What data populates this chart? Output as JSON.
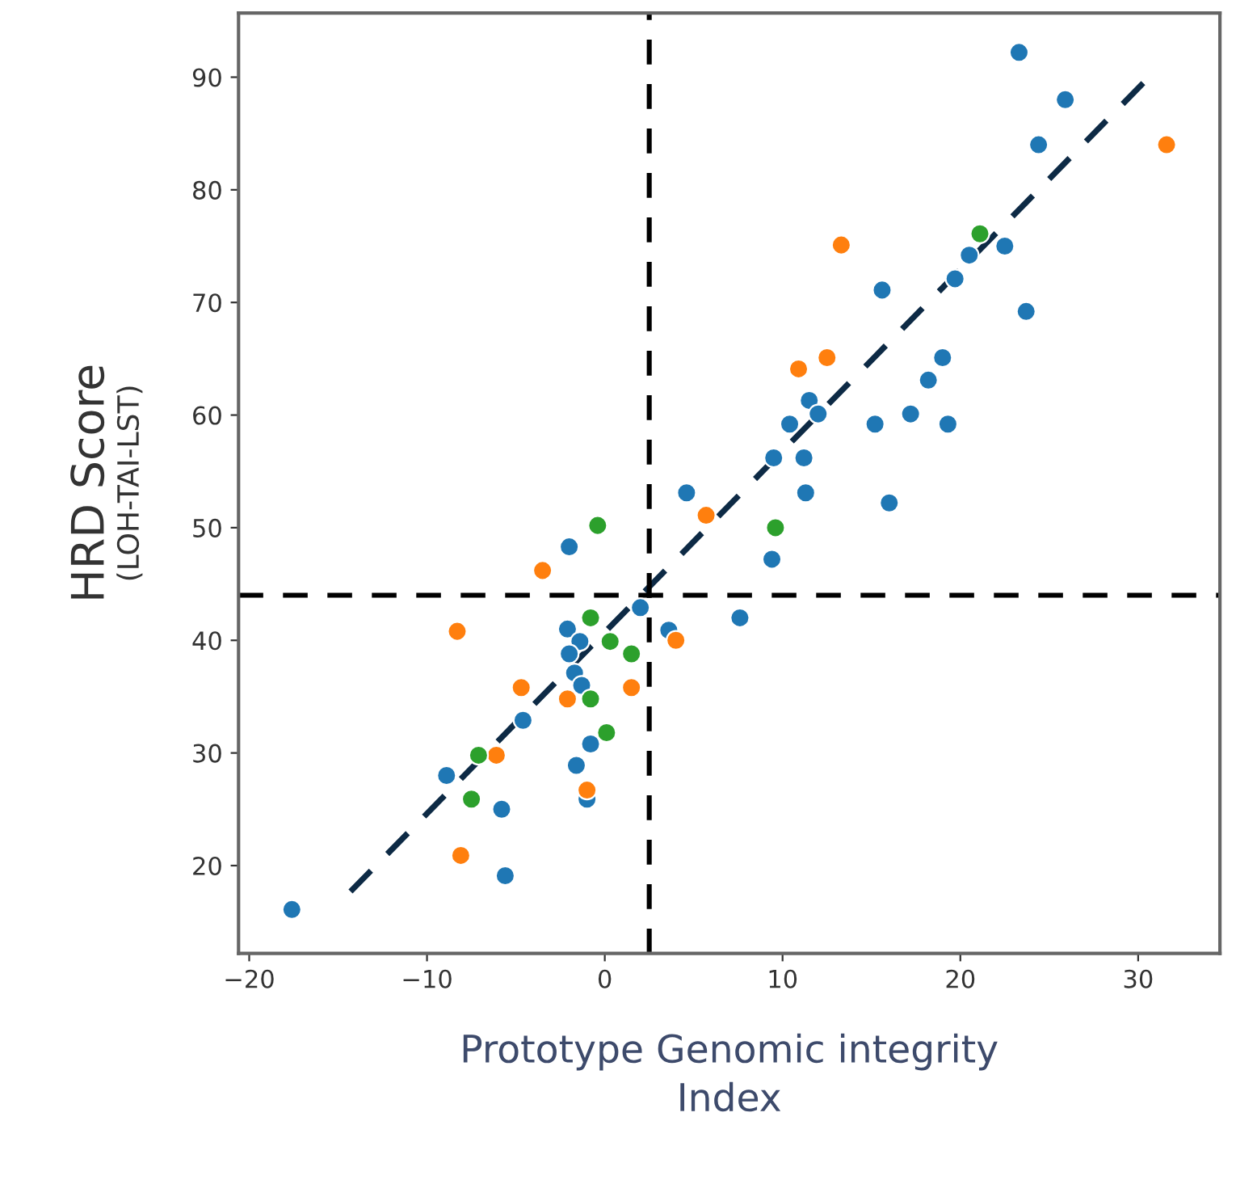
{
  "chart_data": {
    "type": "scatter",
    "xlabel": "Prototype Genomic integrity\nIndex",
    "ylabel": "HRD Score\n(LOH-TAI-LST)",
    "xlim": [
      -20.6,
      34.6
    ],
    "ylim": [
      12.2,
      95.7
    ],
    "xticks": [
      {
        "value": -20,
        "label": "−20"
      },
      {
        "value": -10,
        "label": "−10"
      },
      0,
      10,
      20,
      30
    ],
    "yticks": [
      20,
      30,
      40,
      50,
      60,
      70,
      80,
      90
    ],
    "grid": false,
    "legend": false,
    "marker": "circle",
    "series": [
      {
        "color": "#1f77b4",
        "x": [
          -17.6,
          -8.9,
          -5.8,
          -5.6,
          -2,
          2,
          3.6,
          -2.1,
          -1.4,
          -2,
          -1.7,
          -1.3,
          -4.6,
          -0.8,
          -1.6,
          -1,
          4.6,
          23.3,
          25.9,
          24.4,
          20.5,
          19.7,
          22.5,
          23.7,
          15.6,
          19,
          18.2,
          17.2,
          19.3,
          15.2,
          11.5,
          12,
          10.4,
          9.5,
          11.2,
          11.3,
          16,
          9.4,
          7.6
        ],
        "values": [
          16.1,
          28,
          25,
          19.1,
          48.3,
          42.9,
          40.9,
          41,
          39.9,
          38.8,
          37.1,
          36,
          32.9,
          30.8,
          28.9,
          25.9,
          53.1,
          92.2,
          88,
          84,
          74.2,
          72.1,
          75,
          69.2,
          71.1,
          65.1,
          63.1,
          60.1,
          59.2,
          59.2,
          61.3,
          60.1,
          59.2,
          56.2,
          56.2,
          53.1,
          52.2,
          47.2,
          42
        ]
      },
      {
        "color": "#ff7f0e",
        "x": [
          -3.5,
          4,
          -2.1,
          1.5,
          -4.7,
          -1,
          -6.1,
          -8.1,
          -8.3,
          5.7,
          31.6,
          13.3,
          12.5,
          10.9
        ],
        "values": [
          46.2,
          40,
          34.8,
          35.8,
          35.8,
          26.7,
          29.8,
          20.9,
          40.8,
          51.1,
          84,
          75.1,
          65.1,
          64.1
        ]
      },
      {
        "color": "#2ca02c",
        "x": [
          -0.4,
          -0.8,
          -0.8,
          0.3,
          1.5,
          0.1,
          -7.1,
          -7.5,
          21.1,
          9.6
        ],
        "values": [
          50.2,
          34.8,
          42,
          39.9,
          38.8,
          31.8,
          29.8,
          25.9,
          76.1,
          50
        ]
      },
      {
        "type": "line",
        "color": "#0d2a45",
        "line_style": "dashed",
        "marker": "none",
        "x": [
          -14.3,
          30.3
        ],
        "values": [
          17.7,
          89.5
        ]
      }
    ],
    "ref_lines": [
      {
        "axis": "x",
        "value": 2.5,
        "color": "#000000",
        "line_style": "dashed"
      },
      {
        "axis": "y",
        "value": 44,
        "color": "#000000",
        "line_style": "dashed"
      }
    ]
  }
}
